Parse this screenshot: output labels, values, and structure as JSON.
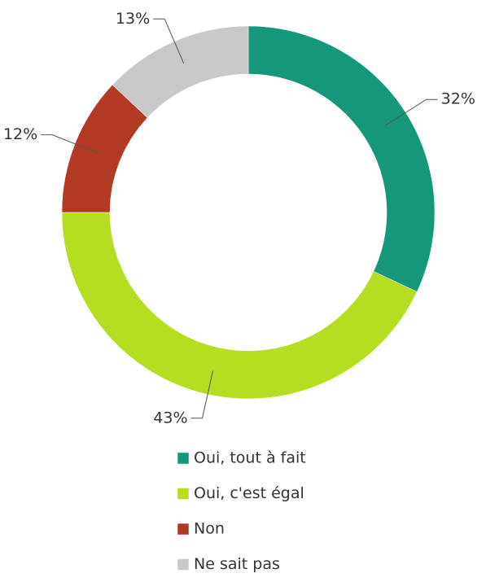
{
  "chart_data": {
    "type": "donut",
    "categories": [
      "Oui, tout à fait",
      "Oui, c'est égal",
      "Non",
      "Ne sait pas"
    ],
    "values": [
      32,
      43,
      12,
      13
    ],
    "value_labels": [
      "32%",
      "43%",
      "12%",
      "13%"
    ],
    "colors": [
      "#16967a",
      "#b5dd22",
      "#b23a25",
      "#c8c8c8"
    ],
    "legend": "bottom"
  }
}
